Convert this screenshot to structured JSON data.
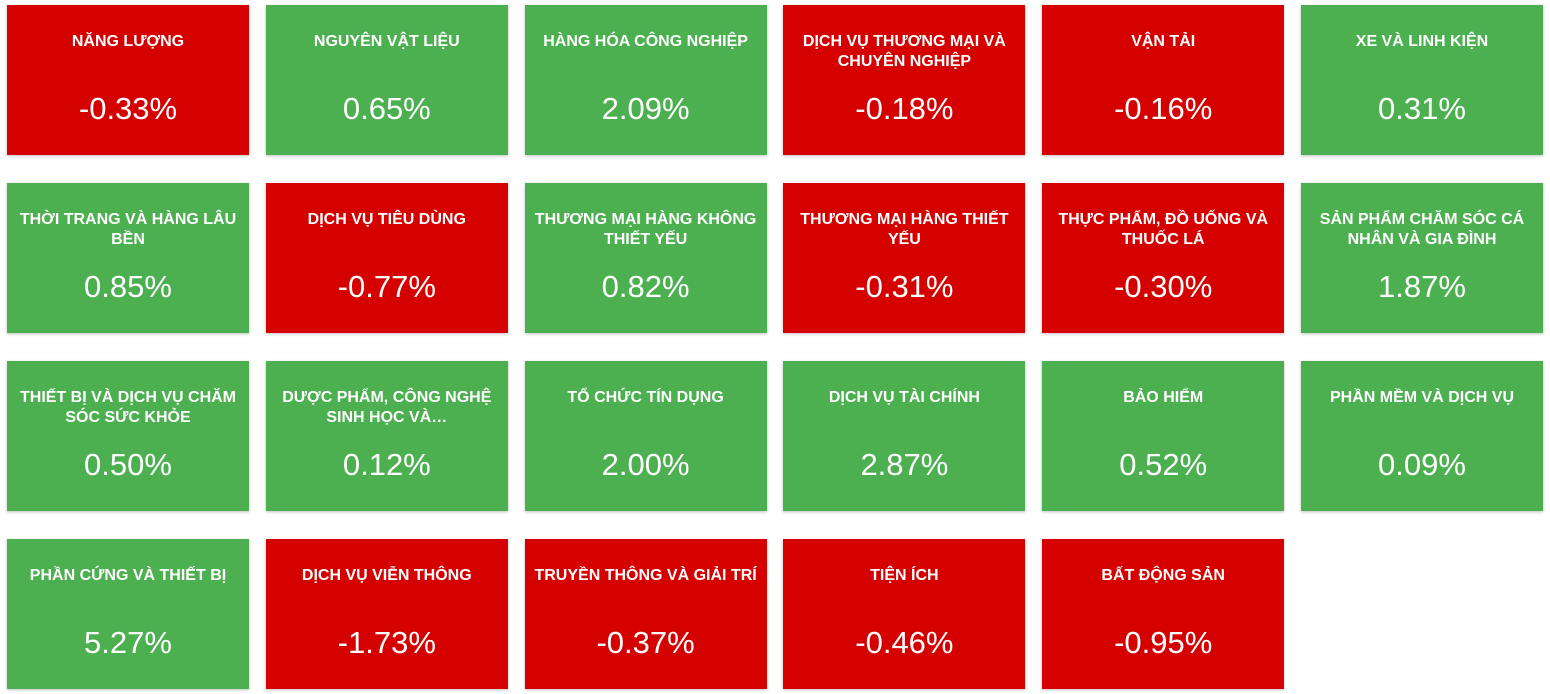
{
  "tiles": [
    {
      "name": "NĂNG LƯỢNG",
      "change": "-0.33%",
      "color": "#d50000"
    },
    {
      "name": "NGUYÊN VẬT LIỆU",
      "change": "0.65%",
      "color": "#4caf50"
    },
    {
      "name": "HÀNG HÓA CÔNG NGHIỆP",
      "change": "2.09%",
      "color": "#4caf50"
    },
    {
      "name": "DỊCH VỤ THƯƠNG MẠI VÀ CHUYÊN NGHIỆP",
      "change": "-0.18%",
      "color": "#d50000"
    },
    {
      "name": "VẬN TẢI",
      "change": "-0.16%",
      "color": "#d50000"
    },
    {
      "name": "XE VÀ LINH KIỆN",
      "change": "0.31%",
      "color": "#4caf50"
    },
    {
      "name": "THỜI TRANG VÀ HÀNG LÂU BỀN",
      "change": "0.85%",
      "color": "#4caf50"
    },
    {
      "name": "DỊCH VỤ TIÊU DÙNG",
      "change": "-0.77%",
      "color": "#d50000"
    },
    {
      "name": "THƯƠNG MẠI HÀNG KHÔNG THIẾT YẾU",
      "change": "0.82%",
      "color": "#4caf50"
    },
    {
      "name": "THƯƠNG MẠI HÀNG THIẾT YẾU",
      "change": "-0.31%",
      "color": "#d50000"
    },
    {
      "name": "THỰC PHẨM, ĐỒ UỐNG VÀ THUỐC LÁ",
      "change": "-0.30%",
      "color": "#d50000"
    },
    {
      "name": "SẢN PHẨM CHĂM SÓC CÁ NHÂN VÀ GIA ĐÌNH",
      "change": "1.87%",
      "color": "#4caf50"
    },
    {
      "name": "THIẾT BỊ VÀ DỊCH VỤ CHĂM SÓC SỨC KHỎE",
      "change": "0.50%",
      "color": "#4caf50"
    },
    {
      "name": "DƯỢC PHẨM, CÔNG NGHỆ SINH HỌC VÀ…",
      "change": "0.12%",
      "color": "#4caf50"
    },
    {
      "name": "TỔ CHỨC TÍN DỤNG",
      "change": "2.00%",
      "color": "#4caf50"
    },
    {
      "name": "DỊCH VỤ TÀI CHÍNH",
      "change": "2.87%",
      "color": "#4caf50"
    },
    {
      "name": "BẢO HIỂM",
      "change": "0.52%",
      "color": "#4caf50"
    },
    {
      "name": "PHẦN MỀM VÀ DỊCH VỤ",
      "change": "0.09%",
      "color": "#4caf50"
    },
    {
      "name": "PHẦN CỨNG VÀ THIẾT BỊ",
      "change": "5.27%",
      "color": "#4caf50"
    },
    {
      "name": "DỊCH VỤ VIỄN THÔNG",
      "change": "-1.73%",
      "color": "#d50000"
    },
    {
      "name": "TRUYỀN THÔNG VÀ GIẢI TRÍ",
      "change": "-0.37%",
      "color": "#d50000"
    },
    {
      "name": "TIỆN ÍCH",
      "change": "-0.46%",
      "color": "#d50000"
    },
    {
      "name": "BẤT ĐỘNG SẢN",
      "change": "-0.95%",
      "color": "#d50000"
    }
  ]
}
